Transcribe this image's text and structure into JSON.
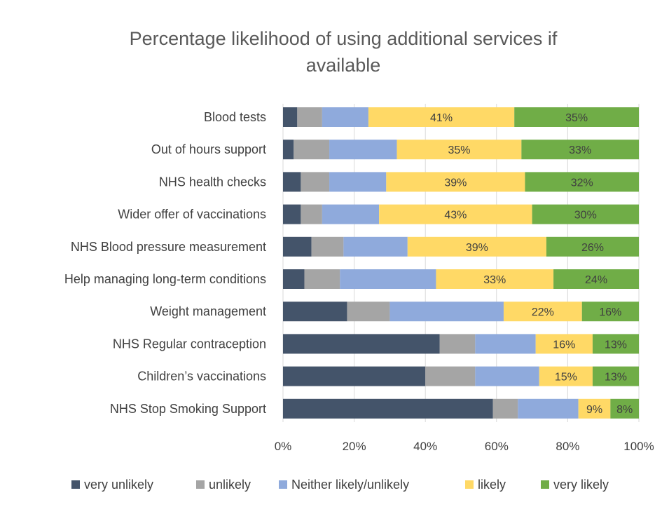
{
  "chart_data": {
    "type": "bar",
    "orientation": "horizontal",
    "stacked": true,
    "title": "Percentage likelihood of using additional services if available",
    "title_lines": [
      "Percentage likelihood of using additional services if",
      "available"
    ],
    "categories": [
      "Blood tests",
      "Out of hours support",
      "NHS health checks",
      "Wider offer of vaccinations",
      "NHS Blood pressure measurement",
      "Help managing long-term conditions",
      "Weight management",
      "NHS Regular contraception",
      "Children’s vaccinations",
      "NHS Stop Smoking Support"
    ],
    "series": [
      {
        "name": "very unlikely",
        "color": "#44546a",
        "values": [
          4,
          3,
          5,
          5,
          8,
          6,
          18,
          44,
          40,
          59
        ],
        "show_labels": false
      },
      {
        "name": "unlikely",
        "color": "#a5a5a5",
        "values": [
          7,
          10,
          8,
          6,
          9,
          10,
          12,
          10,
          14,
          7
        ],
        "show_labels": false
      },
      {
        "name": "Neither likely/unlikely",
        "color": "#8faadc",
        "values": [
          13,
          19,
          16,
          16,
          18,
          27,
          32,
          17,
          18,
          17
        ],
        "show_labels": false
      },
      {
        "name": "likely",
        "color": "#ffd966",
        "values": [
          41,
          35,
          39,
          43,
          39,
          33,
          22,
          16,
          15,
          9
        ],
        "show_labels": true
      },
      {
        "name": "very likely",
        "color": "#70ad47",
        "values": [
          35,
          33,
          32,
          30,
          26,
          24,
          16,
          13,
          13,
          8
        ],
        "show_labels": true
      }
    ],
    "label_suffix": "%",
    "xlim": [
      0,
      100
    ],
    "x_ticks": [
      "0%",
      "20%",
      "40%",
      "60%",
      "80%",
      "100%"
    ],
    "grid": true,
    "legend_position": "bottom"
  }
}
